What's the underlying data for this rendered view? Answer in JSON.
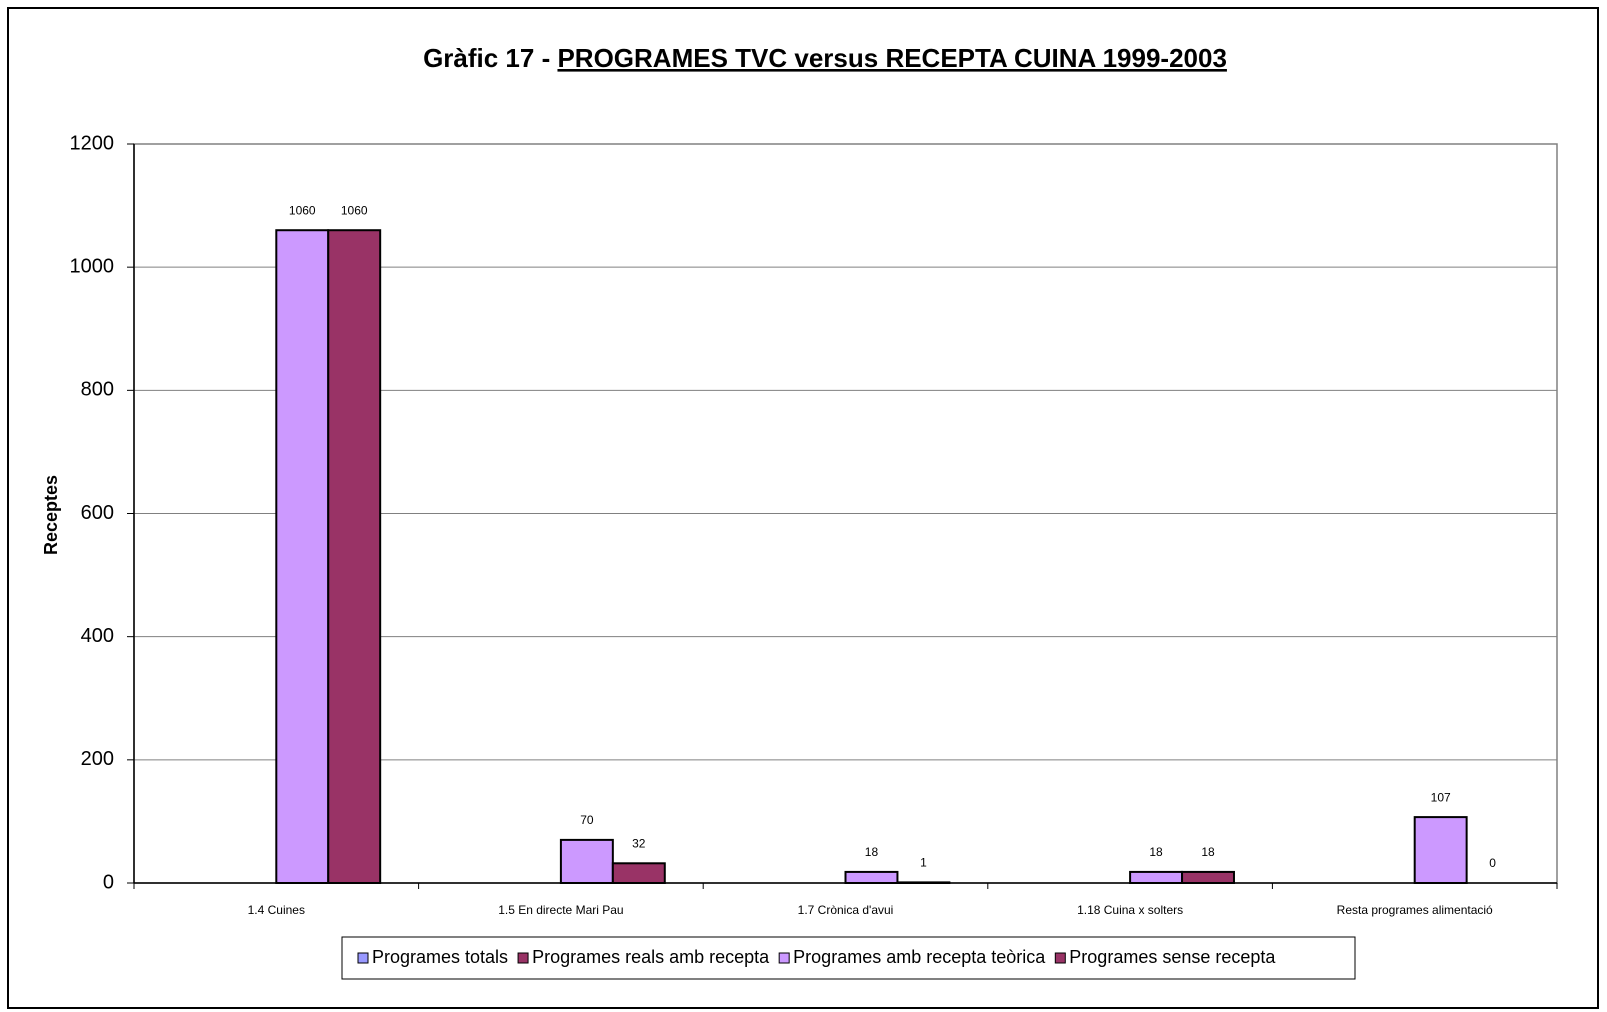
{
  "chart_data": {
    "type": "bar",
    "title_prefix": "Gràfic 17 -",
    "title": "PROGRAMES TVC versus RECEPTA CUINA 1999-2003",
    "y_label": "Receptes",
    "categories": [
      "1.4 Cuines",
      "1.5 En directe Mari Pau",
      "1.7 Crònica d'avui",
      "1.18 Cuina x solters",
      "Resta programes alimentació"
    ],
    "series": [
      {
        "name": "Programes totals",
        "color": "#9999ff",
        "values": [
          null,
          null,
          null,
          null,
          null
        ]
      },
      {
        "name": "Programes reals amb recepta",
        "color": "#993366",
        "values": [
          null,
          null,
          null,
          null,
          null
        ]
      },
      {
        "name": "Programes amb recepta teòrica",
        "color": "#cc99ff",
        "values": [
          1060,
          70,
          18,
          18,
          107
        ]
      },
      {
        "name": "Programes sense recepta",
        "color": "#993366",
        "values": [
          1060,
          32,
          1,
          18,
          0
        ]
      }
    ],
    "ylim": [
      0,
      1200
    ],
    "yticks": [
      0,
      200,
      400,
      600,
      800,
      1000,
      1200
    ],
    "grid": true,
    "legend": "bottom"
  }
}
